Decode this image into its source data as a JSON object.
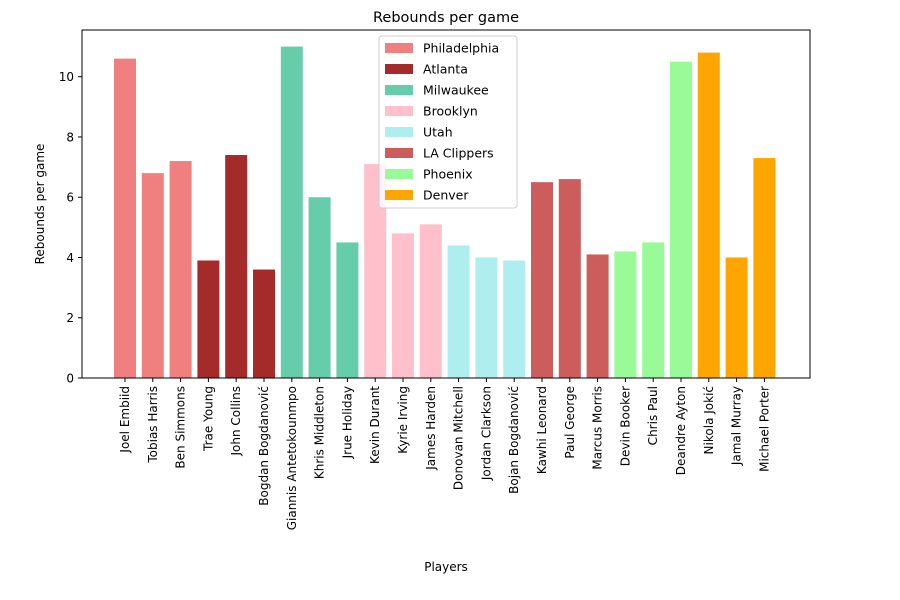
{
  "chart_data": {
    "type": "bar",
    "title": "Rebounds per game",
    "xlabel": "Players",
    "ylabel": "Rebounds per game",
    "ylim": [
      0,
      11.55
    ],
    "yticks": [
      0,
      2,
      4,
      6,
      8,
      10
    ],
    "grid": false,
    "legend_position": "top-center",
    "categories": [
      "Joel Embiid",
      "Tobias Harris",
      "Ben Simmons",
      "Trae Young",
      "John Collins",
      "Bogdan Bogdanović",
      "Giannis Antetokounmpo",
      "Khris Middleton",
      "Jrue Holiday",
      "Kevin Durant",
      "Kyrie Irving",
      "James Harden",
      "Donovan Mitchell",
      "Jordan Clarkson",
      "Bojan Bogdanović",
      "Kawhi Leonard",
      "Paul George",
      "Marcus Morris",
      "Devin Booker",
      "Chris Paul",
      "Deandre Ayton",
      "Nikola Jokić",
      "Jamal Murray",
      "Michael Porter"
    ],
    "values": [
      10.6,
      6.8,
      7.2,
      3.9,
      7.4,
      3.6,
      11.0,
      6.0,
      4.5,
      7.1,
      4.8,
      5.1,
      4.4,
      4.0,
      3.9,
      6.5,
      6.6,
      4.1,
      4.2,
      4.5,
      10.5,
      10.8,
      4.0,
      7.3
    ],
    "teams": [
      "Philadelphia",
      "Philadelphia",
      "Philadelphia",
      "Atlanta",
      "Atlanta",
      "Atlanta",
      "Milwaukee",
      "Milwaukee",
      "Milwaukee",
      "Brooklyn",
      "Brooklyn",
      "Brooklyn",
      "Utah",
      "Utah",
      "Utah",
      "LA Clippers",
      "LA Clippers",
      "LA Clippers",
      "Phoenix",
      "Phoenix",
      "Phoenix",
      "Denver",
      "Denver",
      "Denver"
    ],
    "legend": [
      {
        "name": "Philadelphia",
        "color": "#f08080"
      },
      {
        "name": "Atlanta",
        "color": "#a52a2a"
      },
      {
        "name": "Milwaukee",
        "color": "#66cdaa"
      },
      {
        "name": "Brooklyn",
        "color": "#ffc0cb"
      },
      {
        "name": "Utah",
        "color": "#afeeee"
      },
      {
        "name": "LA Clippers",
        "color": "#cd5c5c"
      },
      {
        "name": "Phoenix",
        "color": "#98fb98"
      },
      {
        "name": "Denver",
        "color": "#ffa500"
      }
    ]
  }
}
